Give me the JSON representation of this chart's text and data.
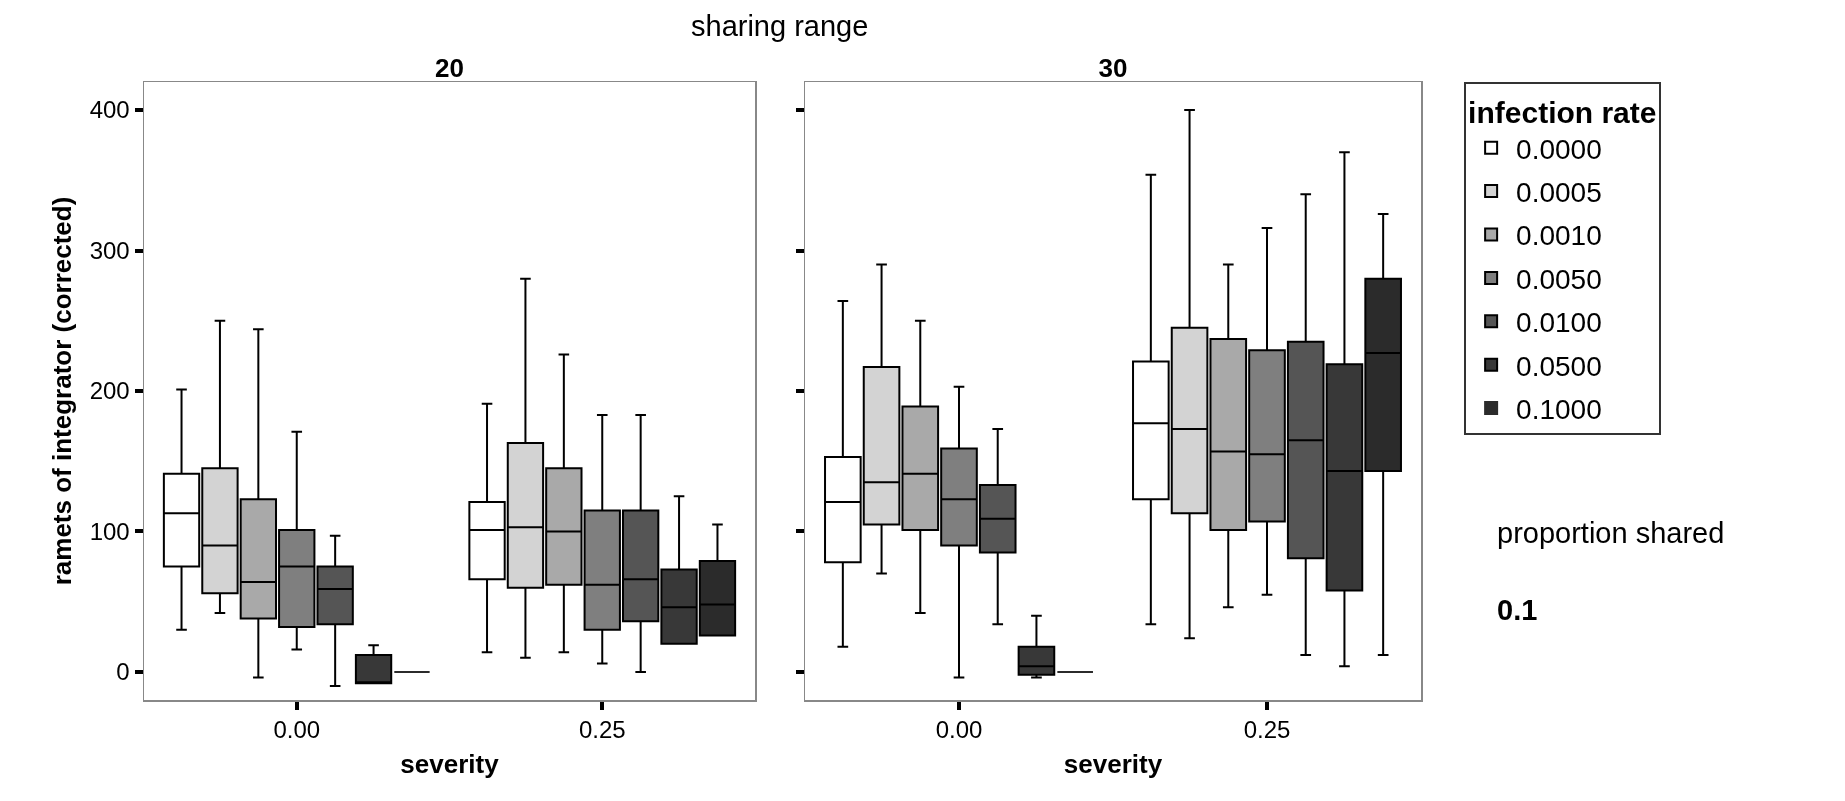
{
  "chart_data": [
    {
      "type": "box",
      "title": "20",
      "xlabel": "severity",
      "ylabel": "ramets of integrator (corrected)",
      "annotations": [
        "sharing range"
      ],
      "categories": [
        "0.00",
        "0.25"
      ],
      "ylim": [
        -20,
        420
      ],
      "yticks": [
        0,
        100,
        200,
        300,
        400
      ],
      "grid": false,
      "legend": false,
      "series": [
        {
          "color": "#ffffff",
          "boxes": [
            {
              "low": 30,
              "q1": 75,
              "median": 113,
              "q3": 141,
              "high": 201
            },
            {
              "low": 14,
              "q1": 66,
              "median": 101,
              "q3": 121,
              "high": 191
            }
          ]
        },
        {
          "color": "#d3d3d3",
          "boxes": [
            {
              "low": 42,
              "q1": 56,
              "median": 90,
              "q3": 145,
              "high": 250
            },
            {
              "low": 10,
              "q1": 60,
              "median": 103,
              "q3": 163,
              "high": 280
            }
          ]
        },
        {
          "color": "#a9a9a9",
          "boxes": [
            {
              "low": -4,
              "q1": 38,
              "median": 64,
              "q3": 123,
              "high": 244
            },
            {
              "low": 14,
              "q1": 62,
              "median": 100,
              "q3": 145,
              "high": 226
            }
          ]
        },
        {
          "color": "#7f7f7f",
          "boxes": [
            {
              "low": 16,
              "q1": 32,
              "median": 75,
              "q3": 101,
              "high": 171
            },
            {
              "low": 6,
              "q1": 30,
              "median": 62,
              "q3": 115,
              "high": 183
            }
          ]
        },
        {
          "color": "#555555",
          "boxes": [
            {
              "low": -10,
              "q1": 34,
              "median": 59,
              "q3": 75,
              "high": 97
            },
            {
              "low": 0,
              "q1": 36,
              "median": 66,
              "q3": 115,
              "high": 183
            }
          ]
        },
        {
          "color": "#383838",
          "boxes": [
            {
              "low": -8,
              "q1": -8,
              "median": -8,
              "q3": 12,
              "high": 19
            },
            {
              "low": 20,
              "q1": 20,
              "median": 46,
              "q3": 73,
              "high": 125
            }
          ]
        },
        {
          "color": "#2b2b2b",
          "boxes": [
            {
              "low": 0,
              "q1": 0,
              "median": 0,
              "q3": 0,
              "high": 0
            },
            {
              "low": 26,
              "q1": 26,
              "median": 48,
              "q3": 79,
              "high": 105
            }
          ]
        }
      ]
    },
    {
      "type": "box",
      "title": "30",
      "xlabel": "severity",
      "legend_title": "infection rate",
      "annotations": [
        "proportion shared",
        "0.1"
      ],
      "categories": [
        "0.00",
        "0.25"
      ],
      "ylim": [
        -20,
        420
      ],
      "yticks": [
        0,
        100,
        200,
        300,
        400
      ],
      "tick_labels": "x",
      "grid": false,
      "legend": "right",
      "series": [
        {
          "name": "0.0000",
          "color": "#ffffff",
          "boxes": [
            {
              "low": 18,
              "q1": 78,
              "median": 121,
              "q3": 153,
              "high": 264
            },
            {
              "low": 34,
              "q1": 123,
              "median": 177,
              "q3": 221,
              "high": 354
            }
          ]
        },
        {
          "name": "0.0005",
          "color": "#d3d3d3",
          "boxes": [
            {
              "low": 70,
              "q1": 105,
              "median": 135,
              "q3": 217,
              "high": 290
            },
            {
              "low": 24,
              "q1": 113,
              "median": 173,
              "q3": 245,
              "high": 400
            }
          ]
        },
        {
          "name": "0.0010",
          "color": "#a9a9a9",
          "boxes": [
            {
              "low": 42,
              "q1": 101,
              "median": 141,
              "q3": 189,
              "high": 250
            },
            {
              "low": 46,
              "q1": 101,
              "median": 157,
              "q3": 237,
              "high": 290
            }
          ]
        },
        {
          "name": "0.0050",
          "color": "#7f7f7f",
          "boxes": [
            {
              "low": -4,
              "q1": 90,
              "median": 123,
              "q3": 159,
              "high": 203
            },
            {
              "low": 55,
              "q1": 107,
              "median": 155,
              "q3": 229,
              "high": 316
            }
          ]
        },
        {
          "name": "0.0100",
          "color": "#555555",
          "boxes": [
            {
              "low": 34,
              "q1": 85,
              "median": 109,
              "q3": 133,
              "high": 173
            },
            {
              "low": 12,
              "q1": 81,
              "median": 165,
              "q3": 235,
              "high": 340
            }
          ]
        },
        {
          "name": "0.0500",
          "color": "#383838",
          "boxes": [
            {
              "low": -4,
              "q1": -2,
              "median": 4,
              "q3": 18,
              "high": 40
            },
            {
              "low": 4,
              "q1": 58,
              "median": 143,
              "q3": 219,
              "high": 370
            }
          ]
        },
        {
          "name": "0.1000",
          "color": "#2b2b2b",
          "boxes": [
            {
              "low": 0,
              "q1": 0,
              "median": 0,
              "q3": 0,
              "high": 0
            },
            {
              "low": 12,
              "q1": 143,
              "median": 227,
              "q3": 280,
              "high": 326
            }
          ]
        }
      ]
    }
  ]
}
